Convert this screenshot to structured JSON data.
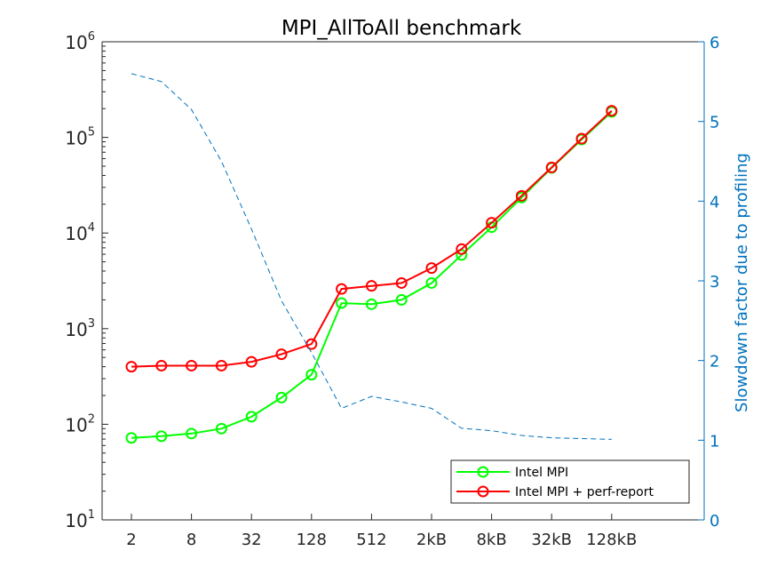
{
  "chart_data": {
    "type": "line",
    "title": "MPI_AllToAll benchmark",
    "xlabel": "",
    "ylabel_left": "",
    "ylabel_right": "Slowdown factor due to profiling",
    "x_scale": "log2",
    "y_left_scale": "log10",
    "y_left_lim": [
      10,
      1000000
    ],
    "y_right_lim": [
      0,
      6
    ],
    "x_tick_labels": [
      "2",
      "8",
      "32",
      "128",
      "512",
      "2kB",
      "8kB",
      "32kB",
      "128kB"
    ],
    "y_left_ticks": [
      {
        "base": "10",
        "exp": "1"
      },
      {
        "base": "10",
        "exp": "2"
      },
      {
        "base": "10",
        "exp": "3"
      },
      {
        "base": "10",
        "exp": "4"
      },
      {
        "base": "10",
        "exp": "5"
      },
      {
        "base": "10",
        "exp": "6"
      }
    ],
    "y_right_ticks": [
      "0",
      "1",
      "2",
      "3",
      "4",
      "5",
      "6"
    ],
    "x": [
      2,
      4,
      8,
      16,
      32,
      64,
      128,
      256,
      512,
      1024,
      2048,
      4096,
      8192,
      16384,
      32768,
      65536,
      131072
    ],
    "series": [
      {
        "name": "Intel MPI",
        "color": "#00FF00",
        "axis": "left",
        "marker": "circle",
        "values": [
          72,
          75,
          80,
          90,
          120,
          190,
          330,
          1850,
          1800,
          2000,
          3000,
          5900,
          11500,
          23500,
          48000,
          95000,
          185000
        ]
      },
      {
        "name": "Intel MPI + perf-report",
        "color": "#FF0000",
        "axis": "left",
        "marker": "circle",
        "values": [
          400,
          410,
          410,
          410,
          450,
          540,
          690,
          2600,
          2800,
          3000,
          4300,
          6800,
          12800,
          24500,
          48500,
          97000,
          190000
        ]
      },
      {
        "name": "",
        "color": "#0072BD",
        "axis": "right",
        "style": "dashed",
        "values": [
          5.6,
          5.5,
          5.15,
          4.5,
          3.65,
          2.75,
          2.1,
          1.4,
          1.55,
          1.48,
          1.4,
          1.15,
          1.12,
          1.06,
          1.03,
          1.02,
          1.01
        ]
      }
    ],
    "legend": {
      "placement": "bottom-right",
      "entries": [
        "Intel MPI",
        "Intel MPI + perf-report"
      ]
    },
    "grid": false
  }
}
